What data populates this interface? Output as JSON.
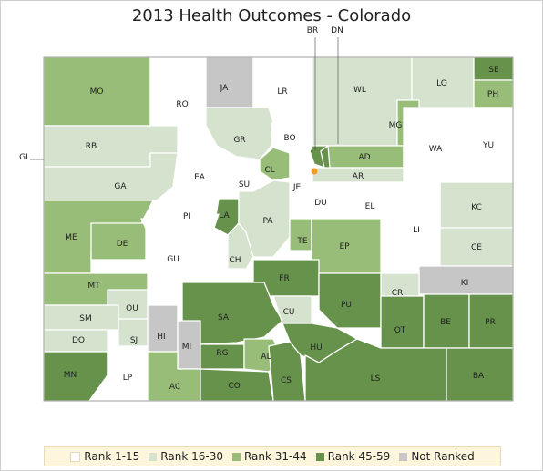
{
  "title": "2013 Health Outcomes - Colorado",
  "colors": {
    "rank_1_15": "#ffffff",
    "rank_16_30": "#d5e2cd",
    "rank_31_44": "#97bd78",
    "rank_45_59": "#66924c",
    "not_ranked": "#c6c6c6",
    "marker": "#f19a2a"
  },
  "legend": [
    {
      "label": "Rank 1-15",
      "color_key": "rank_1_15"
    },
    {
      "label": "Rank 16-30",
      "color_key": "rank_16_30"
    },
    {
      "label": "Rank 31-44",
      "color_key": "rank_31_44"
    },
    {
      "label": "Rank 45-59",
      "color_key": "rank_45_59"
    },
    {
      "label": "Not Ranked",
      "color_key": "not_ranked"
    }
  ],
  "counties": [
    {
      "abbr": "MO",
      "rank_class": "rank_31_44"
    },
    {
      "abbr": "RO",
      "rank_class": "rank_1_15"
    },
    {
      "abbr": "JA",
      "rank_class": "not_ranked"
    },
    {
      "abbr": "LR",
      "rank_class": "rank_1_15"
    },
    {
      "abbr": "WL",
      "rank_class": "rank_16_30"
    },
    {
      "abbr": "LO",
      "rank_class": "rank_16_30"
    },
    {
      "abbr": "SE",
      "rank_class": "rank_45_59"
    },
    {
      "abbr": "PH",
      "rank_class": "rank_31_44"
    },
    {
      "abbr": "MG",
      "rank_class": "rank_31_44"
    },
    {
      "abbr": "RB",
      "rank_class": "rank_16_30"
    },
    {
      "abbr": "GR",
      "rank_class": "rank_16_30"
    },
    {
      "abbr": "BO",
      "rank_class": "rank_1_15"
    },
    {
      "abbr": "AD",
      "rank_class": "rank_31_44"
    },
    {
      "abbr": "WA",
      "rank_class": "rank_1_15"
    },
    {
      "abbr": "YU",
      "rank_class": "rank_1_15"
    },
    {
      "abbr": "GA",
      "rank_class": "rank_16_30"
    },
    {
      "abbr": "EA",
      "rank_class": "rank_1_15"
    },
    {
      "abbr": "CL",
      "rank_class": "rank_31_44"
    },
    {
      "abbr": "SU",
      "rank_class": "rank_1_15"
    },
    {
      "abbr": "JE",
      "rank_class": "rank_1_15"
    },
    {
      "abbr": "AR",
      "rank_class": "rank_16_30"
    },
    {
      "abbr": "DU",
      "rank_class": "rank_1_15"
    },
    {
      "abbr": "EL",
      "rank_class": "rank_1_15"
    },
    {
      "abbr": "PI",
      "rank_class": "rank_1_15"
    },
    {
      "abbr": "LA",
      "rank_class": "rank_45_59"
    },
    {
      "abbr": "PA",
      "rank_class": "rank_16_30"
    },
    {
      "abbr": "KC",
      "rank_class": "rank_16_30"
    },
    {
      "abbr": "LI",
      "rank_class": "rank_1_15"
    },
    {
      "abbr": "ME",
      "rank_class": "rank_31_44"
    },
    {
      "abbr": "DE",
      "rank_class": "rank_31_44"
    },
    {
      "abbr": "GU",
      "rank_class": "rank_1_15"
    },
    {
      "abbr": "CH",
      "rank_class": "rank_16_30"
    },
    {
      "abbr": "TE",
      "rank_class": "rank_31_44"
    },
    {
      "abbr": "EP",
      "rank_class": "rank_31_44"
    },
    {
      "abbr": "CE",
      "rank_class": "rank_16_30"
    },
    {
      "abbr": "FR",
      "rank_class": "rank_45_59"
    },
    {
      "abbr": "KI",
      "rank_class": "not_ranked"
    },
    {
      "abbr": "MT",
      "rank_class": "rank_31_44"
    },
    {
      "abbr": "OU",
      "rank_class": "rank_16_30"
    },
    {
      "abbr": "CR",
      "rank_class": "rank_16_30"
    },
    {
      "abbr": "PU",
      "rank_class": "rank_45_59"
    },
    {
      "abbr": "SM",
      "rank_class": "rank_16_30"
    },
    {
      "abbr": "SA",
      "rank_class": "rank_45_59"
    },
    {
      "abbr": "CU",
      "rank_class": "rank_16_30"
    },
    {
      "abbr": "OT",
      "rank_class": "rank_45_59"
    },
    {
      "abbr": "BE",
      "rank_class": "rank_45_59"
    },
    {
      "abbr": "PR",
      "rank_class": "rank_45_59"
    },
    {
      "abbr": "DO",
      "rank_class": "rank_16_30"
    },
    {
      "abbr": "SJ",
      "rank_class": "rank_16_30"
    },
    {
      "abbr": "HI",
      "rank_class": "not_ranked"
    },
    {
      "abbr": "MI",
      "rank_class": "not_ranked"
    },
    {
      "abbr": "HU",
      "rank_class": "rank_45_59"
    },
    {
      "abbr": "RG",
      "rank_class": "rank_45_59"
    },
    {
      "abbr": "AL",
      "rank_class": "rank_31_44"
    },
    {
      "abbr": "MN",
      "rank_class": "rank_45_59"
    },
    {
      "abbr": "LP",
      "rank_class": "rank_1_15"
    },
    {
      "abbr": "AC",
      "rank_class": "rank_31_44"
    },
    {
      "abbr": "CO",
      "rank_class": "rank_45_59"
    },
    {
      "abbr": "CS",
      "rank_class": "rank_45_59"
    },
    {
      "abbr": "LS",
      "rank_class": "rank_45_59"
    },
    {
      "abbr": "BA",
      "rank_class": "rank_45_59"
    },
    {
      "abbr": "DN",
      "rank_class": "rank_45_59"
    },
    {
      "abbr": "BR",
      "rank_class": "rank_45_59"
    }
  ],
  "external_labels": [
    "GI",
    "BR",
    "DN"
  ]
}
